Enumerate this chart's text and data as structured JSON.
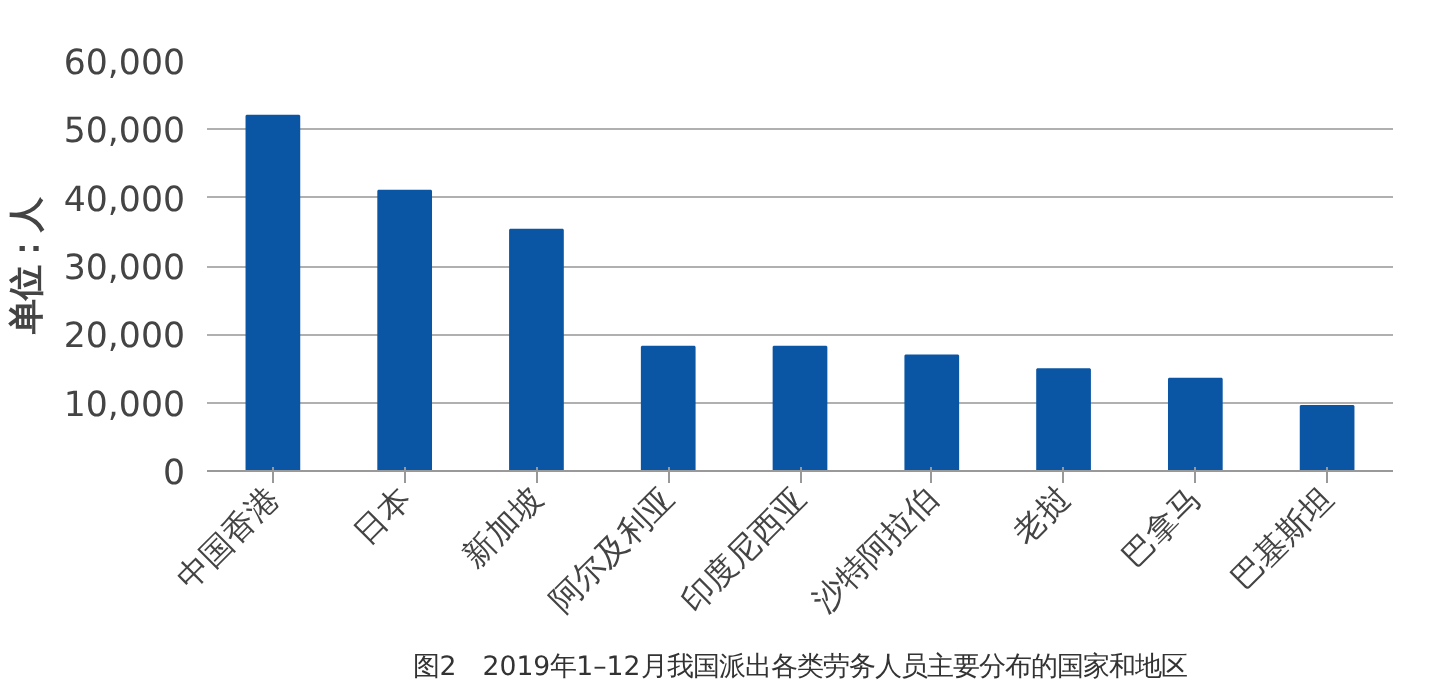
{
  "chart_data": {
    "type": "bar",
    "ylabel": "单位：人",
    "categories": [
      "中国香港",
      "日本",
      "新加坡",
      "阿尔及利亚",
      "印度尼西亚",
      "沙特阿拉伯",
      "老挝",
      "巴拿马",
      "巴基斯坦"
    ],
    "values": [
      52000,
      41000,
      35300,
      18200,
      18200,
      16900,
      14900,
      13500,
      9500
    ],
    "color": "#0b56a4",
    "ylim": [
      0,
      60000
    ],
    "yticks": [
      {
        "value": 0,
        "label": "0"
      },
      {
        "value": 10000,
        "label": "10,000"
      },
      {
        "value": 20000,
        "label": "20,000"
      },
      {
        "value": 30000,
        "label": "30,000"
      },
      {
        "value": 40000,
        "label": "40,000"
      },
      {
        "value": 50000,
        "label": "50,000"
      },
      {
        "value": 60000,
        "label": "60,000"
      }
    ],
    "grid": "y",
    "annotations": [
      "图2　2019年1–12月我国派出各类劳务人员主要分布的国家和地区"
    ]
  }
}
